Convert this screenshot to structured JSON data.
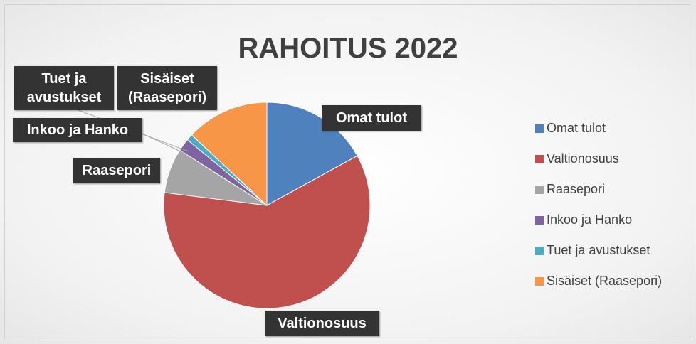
{
  "chart_data": {
    "type": "pie",
    "title": "RAHOITUS 2022",
    "categories": [
      "Omat tulot",
      "Valtionosuus",
      "Raasepori",
      "Inkoo ja Hanko",
      "Tuet ja avustukset",
      "Sisäiset (Raasepori)"
    ],
    "values": [
      17,
      60,
      7,
      2,
      1,
      13
    ],
    "colors": [
      "#4f81bd",
      "#c0504d",
      "#a5a5a5",
      "#8064a2",
      "#4bacc6",
      "#f79646"
    ],
    "legend": "right"
  }
}
